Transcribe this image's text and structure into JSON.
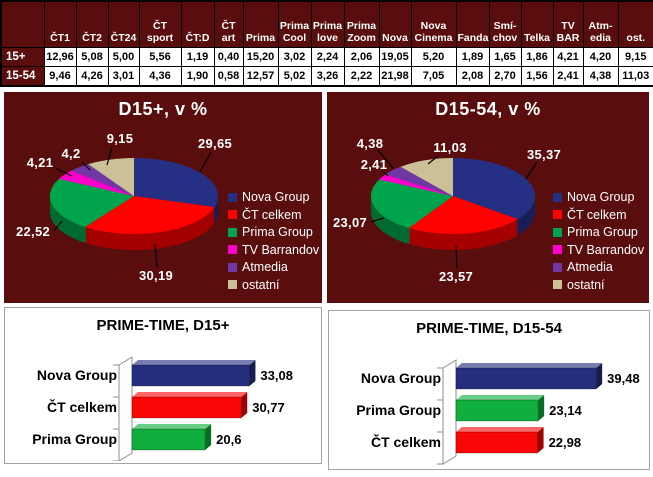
{
  "colors": {
    "maroon_background": "#5A0D0D",
    "table_border": "#000000",
    "panel_border": "#A3A3A3",
    "text_on_dark": "#FFFFFF",
    "text_on_light": "#000000",
    "leader_line": "#000000",
    "wall_fill": "#FDFDFD",
    "wall_stroke": "#8F8F8F"
  },
  "chart_data": [
    {
      "type": "table",
      "columns": [
        "ČT1",
        "ČT2",
        "ČT24",
        "ČT sport",
        "ČT:D",
        "ČT art",
        "Prima",
        "Prima Cool",
        "Prima love",
        "Prima Zoom",
        "Nova",
        "Nova Cinema",
        "Fanda",
        "Smí-chov",
        "Telka",
        "TV BAR",
        "Atm-edia",
        "ost."
      ],
      "rows": [
        {
          "label": "15+",
          "values": [
            "12,96",
            "5,08",
            "5,00",
            "5,56",
            "1,19",
            "0,40",
            "15,20",
            "3,02",
            "2,24",
            "2,06",
            "19,05",
            "5,20",
            "1,89",
            "1,65",
            "1,86",
            "4,21",
            "4,20",
            "9,15"
          ]
        },
        {
          "label": "15-54",
          "values": [
            "9,46",
            "4,26",
            "3,01",
            "4,36",
            "1,90",
            "0,58",
            "12,57",
            "5,02",
            "3,26",
            "2,22",
            "21,98",
            "7,05",
            "2,08",
            "2,70",
            "1,56",
            "2,41",
            "4,38",
            "11,03"
          ]
        }
      ]
    },
    {
      "type": "pie",
      "title": "D15+, v %",
      "labels": [
        "Nova Group",
        "ČT celkem",
        "Prima Group",
        "TV Barrandov",
        "Atmedia",
        "ostatní"
      ],
      "values": [
        29.65,
        30.19,
        22.52,
        4.21,
        4.2,
        9.15
      ],
      "value_labels": [
        "29,65",
        "30,19",
        "22,52",
        "4,21",
        "4,2",
        "9,15"
      ],
      "colors": [
        "#252F84",
        "#FE0101",
        "#00A44C",
        "#FF00CC",
        "#7138A5",
        "#CBC096"
      ],
      "legend_position": "right",
      "background": "#5A0D0D"
    },
    {
      "type": "pie",
      "title": "D15-54, v %",
      "labels": [
        "Nova Group",
        "ČT celkem",
        "Prima Group",
        "TV Barrandov",
        "Atmedia",
        "ostatní"
      ],
      "values": [
        35.37,
        23.57,
        23.07,
        2.41,
        4.38,
        11.03
      ],
      "value_labels": [
        "35,37",
        "23,57",
        "23,07",
        "2,41",
        "4,38",
        "11,03"
      ],
      "colors": [
        "#252F84",
        "#FE0101",
        "#00A44C",
        "#FF00CC",
        "#7138A5",
        "#CBC096"
      ],
      "legend_position": "right",
      "background": "#5A0D0D"
    },
    {
      "type": "bar",
      "title": "PRIME-TIME, D15+",
      "orientation": "horizontal",
      "categories": [
        "Nova Group",
        "ČT celkem",
        "Prima Group"
      ],
      "values": [
        33.08,
        30.77,
        20.6
      ],
      "value_labels": [
        "33,08",
        "30,77",
        "20,6"
      ],
      "colors": [
        "#242E7D",
        "#F90606",
        "#10AE3C"
      ],
      "xlim": [
        0,
        45
      ]
    },
    {
      "type": "bar",
      "title": "PRIME-TIME, D15-54",
      "orientation": "horizontal",
      "categories": [
        "Nova Group",
        "Prima Group",
        "ČT celkem"
      ],
      "values": [
        39.48,
        23.14,
        22.98
      ],
      "value_labels": [
        "39,48",
        "23,14",
        "22,98"
      ],
      "colors": [
        "#242E7D",
        "#10AE3C",
        "#F90606"
      ],
      "xlim": [
        0,
        45
      ]
    }
  ]
}
